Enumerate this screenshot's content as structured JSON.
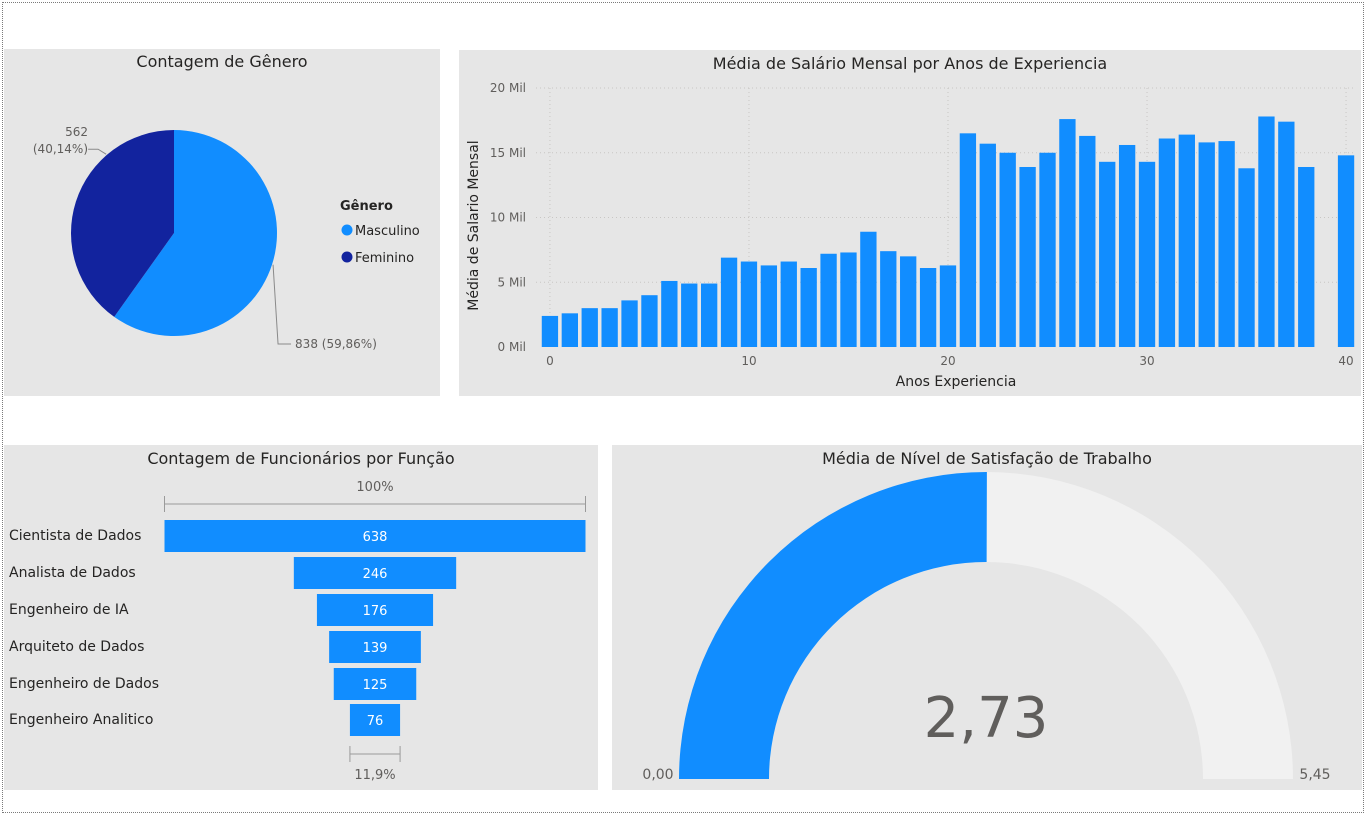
{
  "colors": {
    "primary": "#118dff",
    "dark": "#12239e",
    "panel": "#e6e6e6",
    "gauge_track": "#f1f1f1",
    "text": "#252423",
    "muted": "#605e5c"
  },
  "gender": {
    "title": "Contagem de Gênero",
    "legend_title": "Gênero",
    "legend_placement": "right",
    "chart_data": {
      "type": "pie",
      "title": "Contagem de Gênero",
      "slices": [
        {
          "label": "Masculino",
          "value": 838,
          "percent": "59,86%",
          "display": "838 (59,86%)",
          "color": "#118dff"
        },
        {
          "label": "Feminino",
          "value": 562,
          "percent": "40,14%",
          "display_value": "562",
          "display_percent": "(40,14%)",
          "color": "#12239e"
        }
      ]
    }
  },
  "salary": {
    "title": "Média de Salário Mensal por Anos de Experiencia",
    "chart_data": {
      "type": "bar",
      "title": "Média de Salário Mensal por Anos de Experiencia",
      "xlabel": "Anos Experiencia",
      "ylabel": "Média de Salario Mensal",
      "x_ticks": [
        "0",
        "10",
        "20",
        "30",
        "40"
      ],
      "y_ticks": [
        "0 Mil",
        "5 Mil",
        "10 Mil",
        "15 Mil",
        "20 Mil"
      ],
      "ylim": [
        0,
        20000
      ],
      "xlim": [
        0,
        40
      ],
      "grid": true,
      "x": [
        0,
        1,
        2,
        3,
        4,
        5,
        6,
        7,
        8,
        9,
        10,
        11,
        12,
        13,
        14,
        15,
        16,
        17,
        18,
        19,
        20,
        21,
        22,
        23,
        24,
        25,
        26,
        27,
        28,
        29,
        30,
        31,
        32,
        33,
        34,
        35,
        36,
        37,
        38,
        40
      ],
      "values": [
        2400,
        2600,
        3000,
        3000,
        3600,
        4000,
        5100,
        4900,
        4900,
        6900,
        6600,
        6300,
        6600,
        6100,
        7200,
        7300,
        8900,
        7400,
        7000,
        6100,
        6300,
        16500,
        15700,
        15000,
        13900,
        15000,
        17600,
        16300,
        14300,
        15600,
        14300,
        16100,
        16400,
        15800,
        15900,
        13800,
        17800,
        17400,
        13900,
        14800
      ],
      "color": "#118dff"
    }
  },
  "roles": {
    "title": "Contagem de Funcionários por Função",
    "top_percent": "100%",
    "bottom_percent": "11,9%",
    "chart_data": {
      "type": "bar",
      "subtype": "funnel",
      "title": "Contagem de Funcionários por Função",
      "categories": [
        "Cientista de Dados",
        "Analista de Dados",
        "Engenheiro de IA",
        "Arquiteto de Dados",
        "Engenheiro de Dados",
        "Engenheiro Analitico"
      ],
      "values": [
        638,
        246,
        176,
        139,
        125,
        76
      ],
      "value_labels": [
        "638",
        "246",
        "176",
        "139",
        "125",
        "76"
      ],
      "color": "#118dff"
    }
  },
  "satisfaction": {
    "title": "Média de Nível de Satisfação de Trabalho",
    "value_label": "2,73",
    "min_label": "0,00",
    "max_label": "5,45",
    "chart_data": {
      "type": "gauge",
      "title": "Média de Nível de Satisfação de Trabalho",
      "value": 2.73,
      "min": 0,
      "max": 5.45,
      "fill_color": "#118dff",
      "track_color": "#f1f1f1"
    }
  }
}
